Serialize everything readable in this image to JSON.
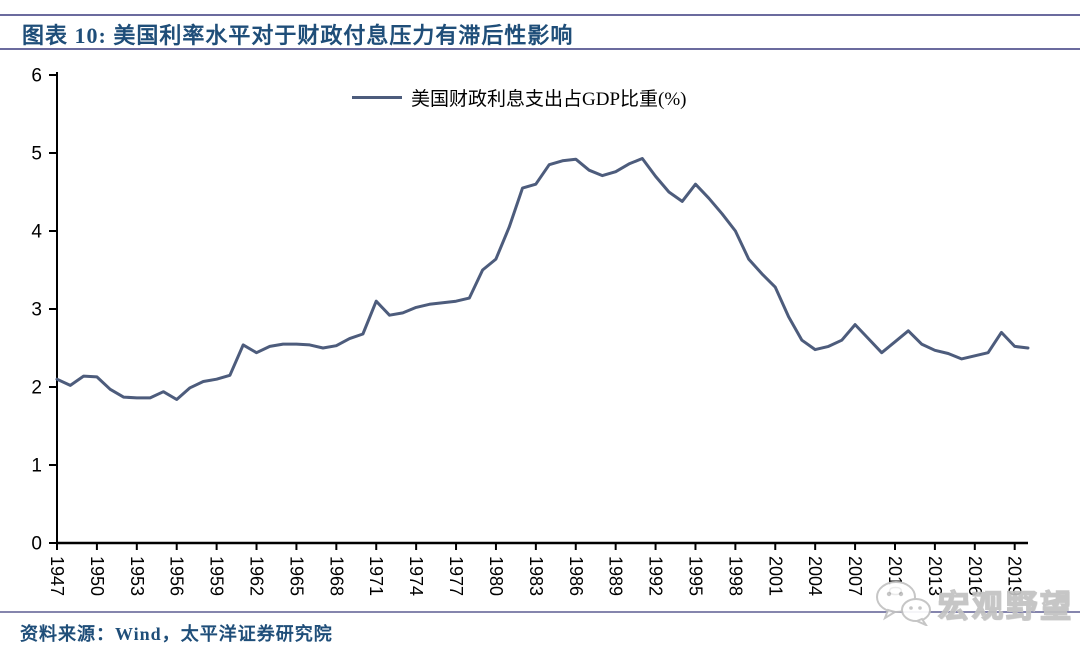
{
  "header": {
    "title": "图表 10:  美国利率水平对于财政付息压力有滞后性影响"
  },
  "legend": {
    "label": "美国财政利息支出占GDP比重(%)"
  },
  "footer": {
    "source": "资料来源：Wind，太平洋证券研究院"
  },
  "watermark": {
    "icon": "wechat-icon",
    "text": "宏观野望"
  },
  "colors": {
    "line": "#4d5c7c",
    "title_text": "#1f4e79",
    "source_text": "#1f4e79",
    "rule": "#6b6b9e",
    "bottom_rule": "#8585ad",
    "axis": "#000000",
    "tick_label": "#000000",
    "watermark_gray": "#c2c2c2"
  },
  "chart_data": {
    "type": "line",
    "title": "图表 10:  美国利率水平对于财政付息压力有滞后性影响",
    "xlabel": "",
    "ylabel": "",
    "ylim": [
      0,
      6
    ],
    "yticks": [
      0,
      1,
      2,
      3,
      4,
      5,
      6
    ],
    "xticks": [
      1947,
      1950,
      1953,
      1956,
      1959,
      1962,
      1965,
      1968,
      1971,
      1974,
      1977,
      1980,
      1983,
      1986,
      1989,
      1992,
      1995,
      1998,
      2001,
      2004,
      2007,
      2010,
      2013,
      2016,
      2019
    ],
    "grid": false,
    "legend_position": "top-center",
    "x": [
      1947,
      1948,
      1949,
      1950,
      1951,
      1952,
      1953,
      1954,
      1955,
      1956,
      1957,
      1958,
      1959,
      1960,
      1961,
      1962,
      1963,
      1964,
      1965,
      1966,
      1967,
      1968,
      1969,
      1970,
      1971,
      1972,
      1973,
      1974,
      1975,
      1976,
      1977,
      1978,
      1979,
      1980,
      1981,
      1982,
      1983,
      1984,
      1985,
      1986,
      1987,
      1988,
      1989,
      1990,
      1991,
      1992,
      1993,
      1994,
      1995,
      1996,
      1997,
      1998,
      1999,
      2000,
      2001,
      2002,
      2003,
      2004,
      2005,
      2006,
      2007,
      2008,
      2009,
      2010,
      2011,
      2012,
      2013,
      2014,
      2015,
      2016,
      2017,
      2018,
      2019,
      2020
    ],
    "series": [
      {
        "name": "美国财政利息支出占GDP比重(%)",
        "values": [
          2.1,
          2.02,
          2.14,
          2.13,
          1.97,
          1.87,
          1.86,
          1.86,
          1.94,
          1.84,
          1.99,
          2.07,
          2.1,
          2.15,
          2.54,
          2.44,
          2.52,
          2.55,
          2.55,
          2.54,
          2.5,
          2.53,
          2.62,
          2.68,
          3.1,
          2.92,
          2.95,
          3.02,
          3.06,
          3.08,
          3.1,
          3.14,
          3.5,
          3.64,
          4.05,
          4.55,
          4.6,
          4.85,
          4.9,
          4.92,
          4.78,
          4.71,
          4.76,
          4.86,
          4.93,
          4.7,
          4.5,
          4.38,
          4.6,
          4.42,
          4.22,
          4.0,
          3.64,
          3.45,
          3.28,
          2.9,
          2.6,
          2.48,
          2.52,
          2.6,
          2.8,
          2.62,
          2.44,
          2.58,
          2.72,
          2.55,
          2.47,
          2.43,
          2.36,
          2.4,
          2.44,
          2.7,
          2.52,
          2.5
        ]
      }
    ]
  }
}
